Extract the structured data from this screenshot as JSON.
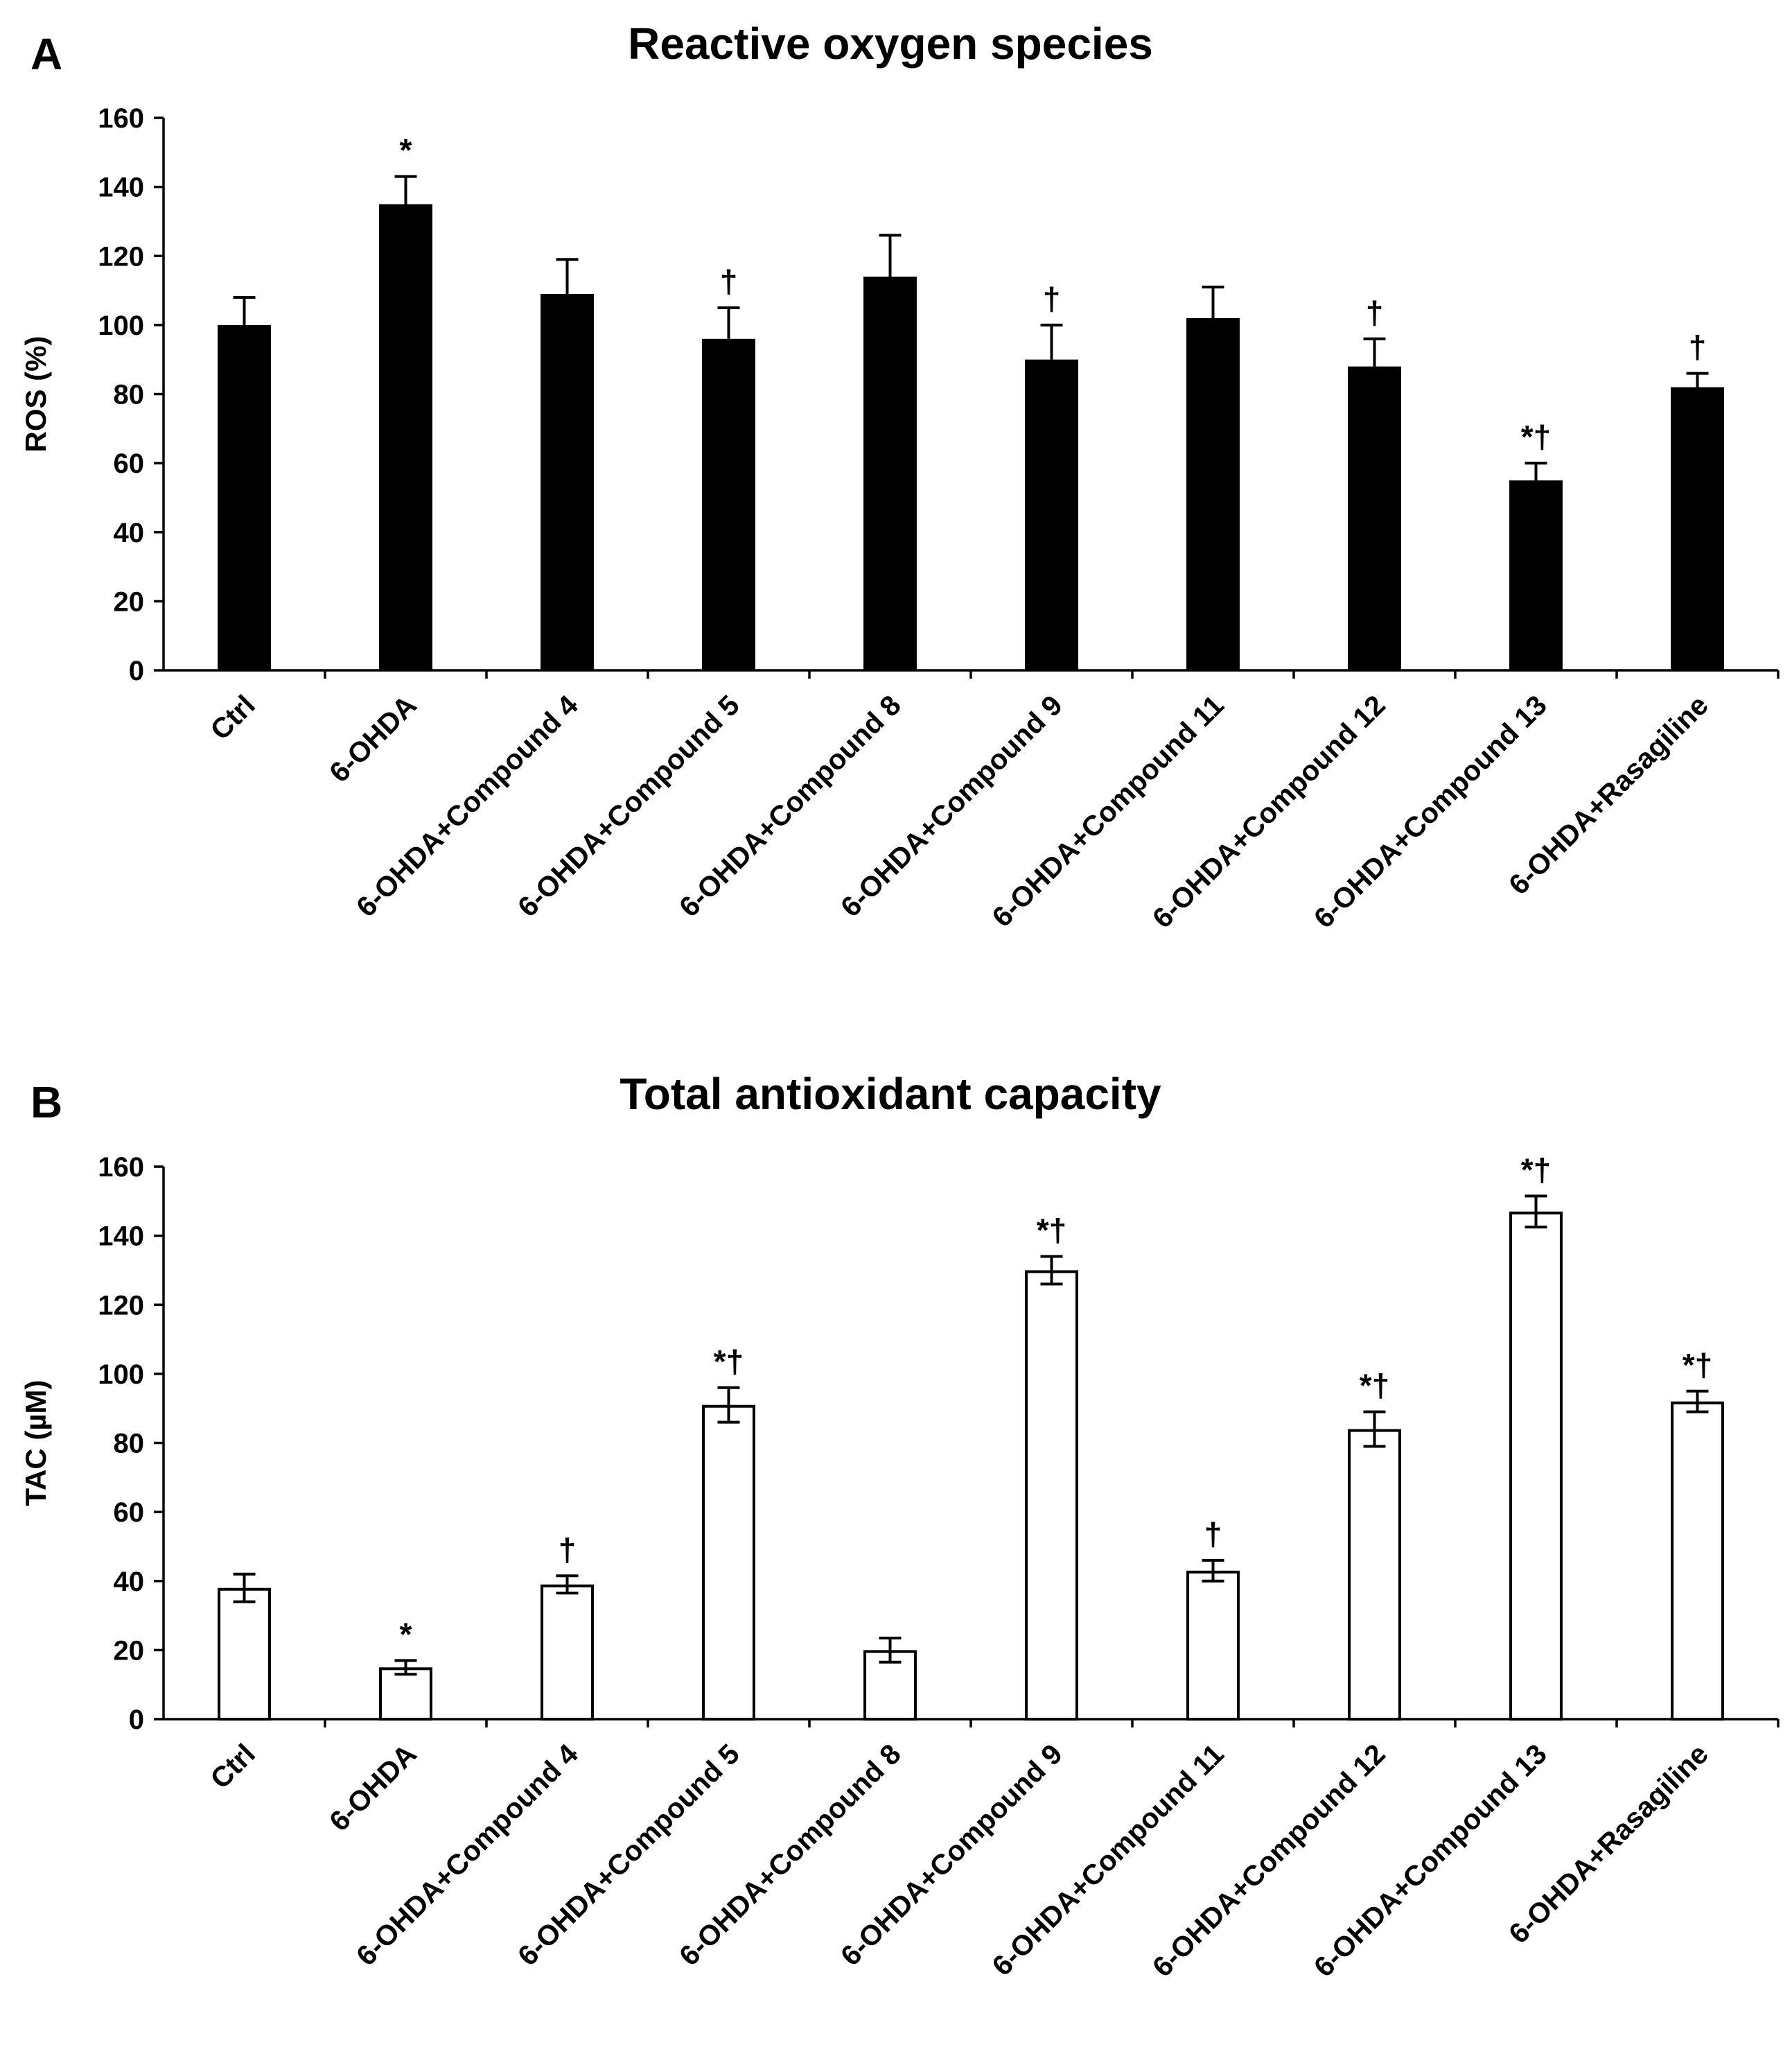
{
  "chart_data": [
    {
      "panel": "A",
      "type": "bar",
      "title": "Reactive oxygen species",
      "xlabel": "",
      "ylabel": "ROS (%)",
      "ylim": [
        0,
        160
      ],
      "yticks": [
        0,
        20,
        40,
        60,
        80,
        100,
        120,
        140,
        160
      ],
      "grid": false,
      "bar_fill": "#000000",
      "bar_stroke": "#000000",
      "categories": [
        "Ctrl",
        "6-OHDA",
        "6-OHDA+Compound 4",
        "6-OHDA+Compound 5",
        "6-OHDA+Compound 8",
        "6-OHDA+Compound 9",
        "6-OHDA+Compound 11",
        "6-OHDA+Compound 12",
        "6-OHDA+Compound 13",
        "6-OHDA+Rasagiline"
      ],
      "values": [
        100,
        135,
        109,
        96,
        114,
        90,
        102,
        88,
        55,
        82
      ],
      "errors": [
        8,
        8,
        10,
        9,
        12,
        10,
        9,
        8,
        5,
        4
      ],
      "error_style": "upper",
      "annotations": [
        "",
        "*",
        "",
        "†",
        "",
        "†",
        "",
        "†",
        "*†",
        "†"
      ]
    },
    {
      "panel": "B",
      "type": "bar",
      "title": "Total antioxidant capacity",
      "xlabel": "",
      "ylabel": "TAC (µM)",
      "ylim": [
        0,
        160
      ],
      "yticks": [
        0,
        20,
        40,
        60,
        80,
        100,
        120,
        140,
        160
      ],
      "grid": false,
      "bar_fill": "#ffffff",
      "bar_stroke": "#000000",
      "categories": [
        "Ctrl",
        "6-OHDA",
        "6-OHDA+Compound 4",
        "6-OHDA+Compound 5",
        "6-OHDA+Compound 8",
        "6-OHDA+Compound 9",
        "6-OHDA+Compound 11",
        "6-OHDA+Compound 12",
        "6-OHDA+Compound 13",
        "6-OHDA+Rasagiline"
      ],
      "values": [
        38,
        15,
        39,
        91,
        20,
        130,
        43,
        84,
        147,
        92
      ],
      "errors": [
        4,
        2,
        2.5,
        5,
        3.5,
        4,
        3,
        5,
        4.5,
        3
      ],
      "error_style": "both",
      "annotations": [
        "",
        "*",
        "†",
        "*†",
        "",
        "*†",
        "†",
        "*†",
        "*†",
        "*†"
      ]
    }
  ]
}
